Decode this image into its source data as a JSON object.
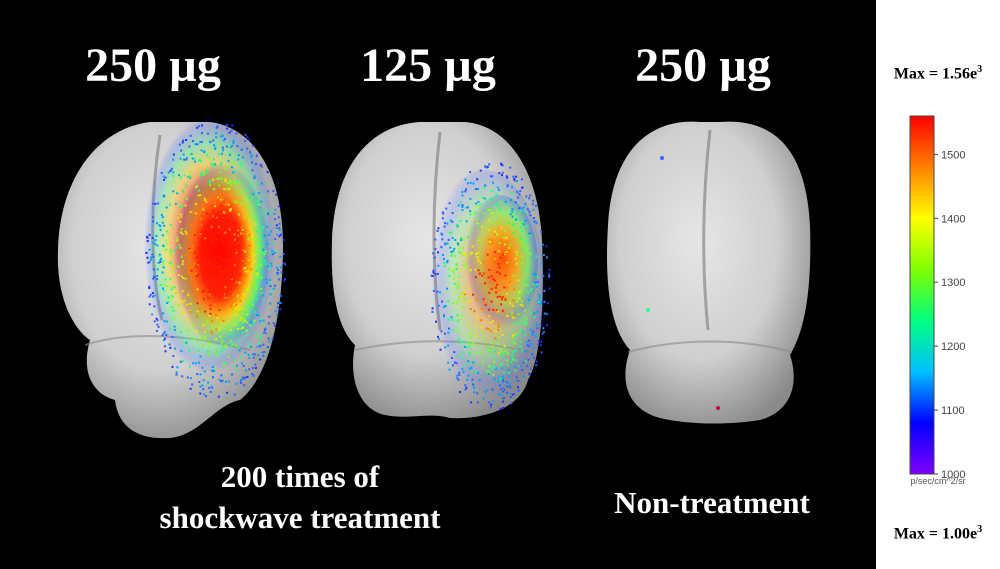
{
  "panels": [
    {
      "dose": "250 µg"
    },
    {
      "dose": "125 µg"
    },
    {
      "dose": "250 µg"
    }
  ],
  "captions": {
    "treatment_line1": "200 times of",
    "treatment_line2": "shockwave treatment",
    "control": "Non-treatment"
  },
  "colorbar": {
    "max_label_text": "Max = 1.56e",
    "max_exp": "3",
    "min_label_text": "Max = 1.00e",
    "min_exp": "3",
    "ticks": [
      1000,
      1100,
      1200,
      1300,
      1400,
      1500
    ],
    "range": [
      1000,
      1560
    ],
    "unit": "p/sec/cm^2/sr",
    "colors": [
      "#8000ff",
      "#0000ff",
      "#00c0ff",
      "#00ff80",
      "#80ff00",
      "#ffff00",
      "#ff8000",
      "#ff0000"
    ]
  }
}
